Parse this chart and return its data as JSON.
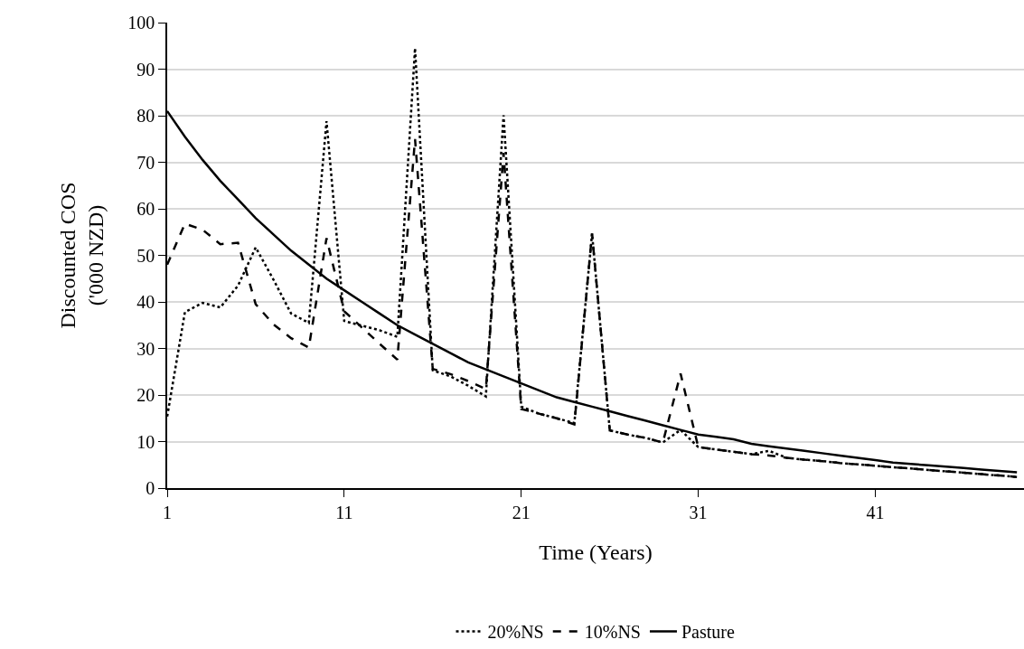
{
  "chart_data": {
    "type": "line",
    "xlabel": "Time (Years)",
    "ylabel": "Discounted COS\n('000 NZD)",
    "x": [
      1,
      2,
      3,
      4,
      5,
      6,
      7,
      8,
      9,
      10,
      11,
      12,
      13,
      14,
      15,
      16,
      17,
      18,
      19,
      20,
      21,
      22,
      23,
      24,
      25,
      26,
      27,
      28,
      29,
      30,
      31,
      32,
      33,
      34,
      35,
      36,
      37,
      38,
      39,
      40,
      41,
      42,
      43,
      44,
      45,
      46,
      47,
      48,
      49
    ],
    "series": [
      {
        "name": "20%NS",
        "color": "#000000",
        "line_style": "dotted",
        "values": [
          15.4,
          37.8,
          39.8,
          38.8,
          43.5,
          51.7,
          44.8,
          37.5,
          35.5,
          78.8,
          35.9,
          34.9,
          33.9,
          32.5,
          94.5,
          25.3,
          24,
          22,
          19.7,
          80.1,
          17.5,
          16,
          15,
          14,
          54.7,
          12.4,
          11.5,
          10.8,
          9.8,
          12.5,
          8.8,
          8.3,
          7.8,
          7.3,
          8,
          6.5,
          6.1,
          5.8,
          5.4,
          5.1,
          4.8,
          4.5,
          4.2,
          3.9,
          3.6,
          3.3,
          3,
          2.7,
          2.4
        ]
      },
      {
        "name": "10%NS",
        "color": "#000000",
        "line_style": "dashed",
        "values": [
          48,
          56.8,
          55.5,
          52.4,
          52.7,
          39.5,
          35.2,
          32.2,
          30.2,
          53.7,
          38,
          34.5,
          31,
          27.6,
          75,
          25.6,
          24.5,
          23,
          21.3,
          72,
          17,
          16,
          15,
          13.7,
          54.7,
          12.4,
          11.5,
          10.8,
          9.8,
          24.6,
          8.8,
          8.3,
          7.8,
          7.3,
          7,
          6.5,
          6.1,
          5.8,
          5.4,
          5.1,
          4.8,
          4.5,
          4.2,
          3.9,
          3.6,
          3.3,
          3,
          2.7,
          2.4
        ]
      },
      {
        "name": "Pasture",
        "color": "#000000",
        "line_style": "solid",
        "values": [
          81,
          75.5,
          70.5,
          66,
          62,
          58,
          54.5,
          51,
          48,
          45,
          42.5,
          40,
          37.5,
          35,
          33,
          31,
          29,
          27,
          25.5,
          24,
          22.5,
          21,
          19.5,
          18.5,
          17.5,
          16.5,
          15.5,
          14.5,
          13.5,
          12.5,
          11.5,
          11,
          10.5,
          9.5,
          9,
          8.5,
          8,
          7.5,
          7,
          6.5,
          6,
          5.5,
          5.2,
          4.9,
          4.6,
          4.3,
          4,
          3.7,
          3.4
        ]
      }
    ],
    "xlim": [
      1,
      49.4
    ],
    "xticks": [
      1,
      11,
      21,
      31,
      41
    ],
    "ylim": [
      0,
      100
    ],
    "yticks": [
      0,
      10,
      20,
      30,
      40,
      50,
      60,
      70,
      80,
      90,
      100
    ],
    "grid": "y",
    "legend": "bottom",
    "marker": "none"
  }
}
